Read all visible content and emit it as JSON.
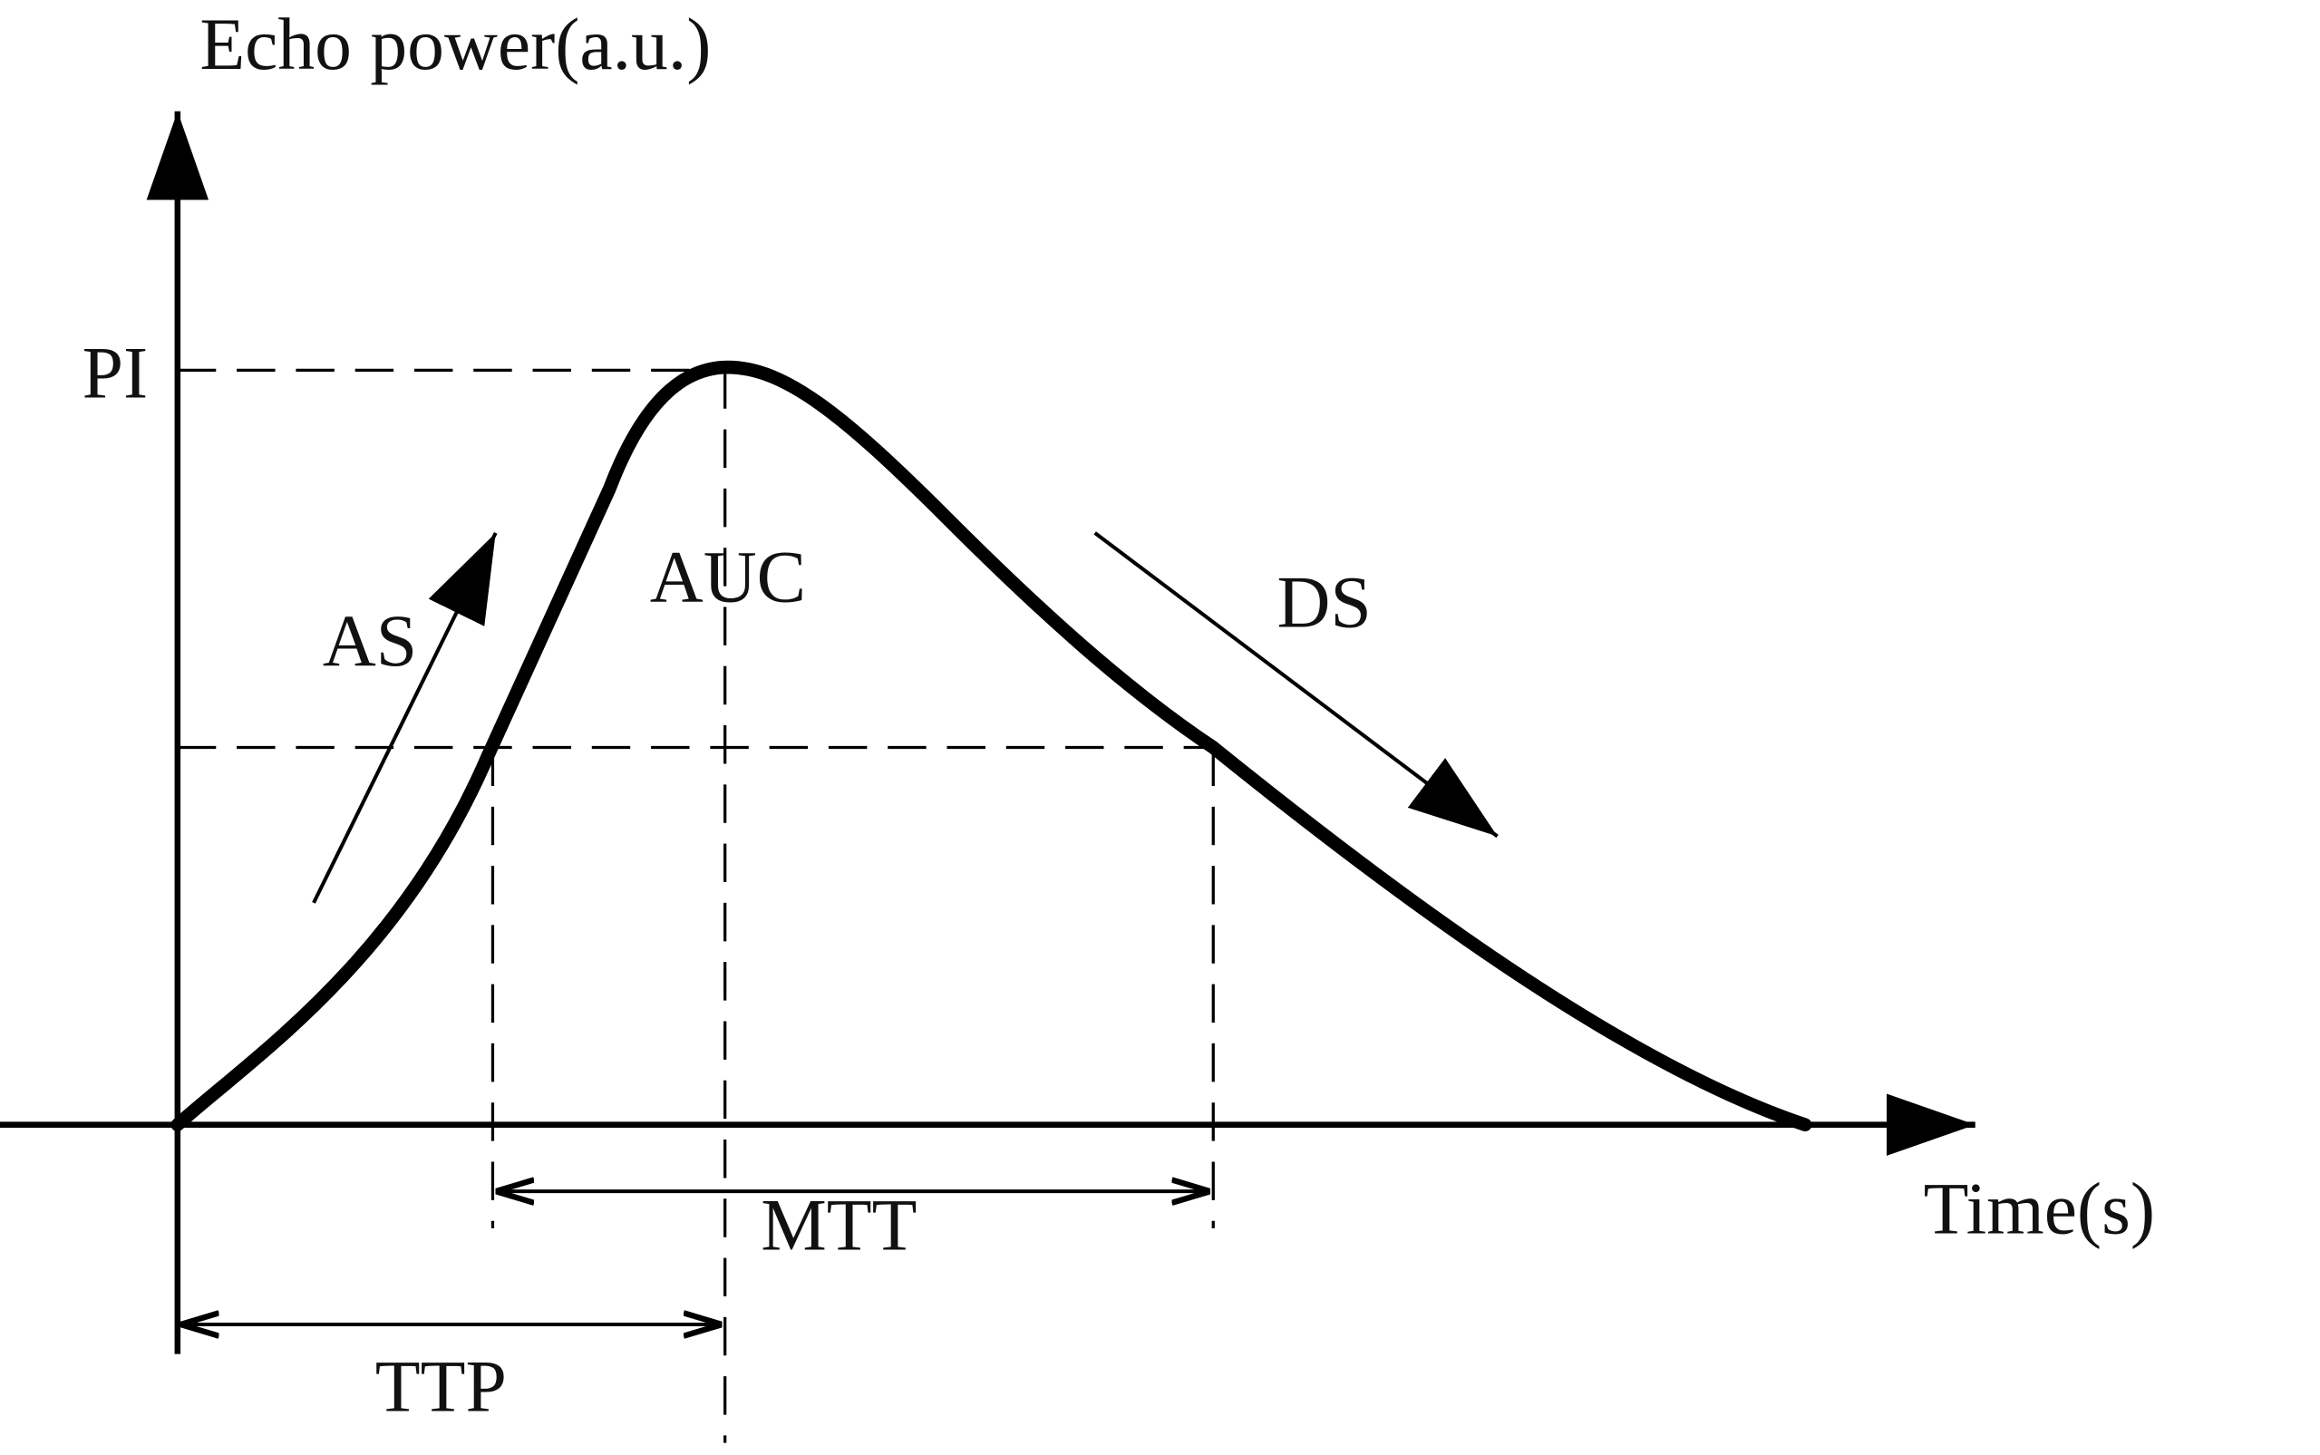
{
  "axes": {
    "y_label": "Echo power(a.u.)",
    "x_label": "Time(s)"
  },
  "labels": {
    "peak": "PI",
    "ascending": "AS",
    "area": "AUC",
    "descending": "DS",
    "transit": "MTT",
    "time_to_peak": "TTP"
  }
}
